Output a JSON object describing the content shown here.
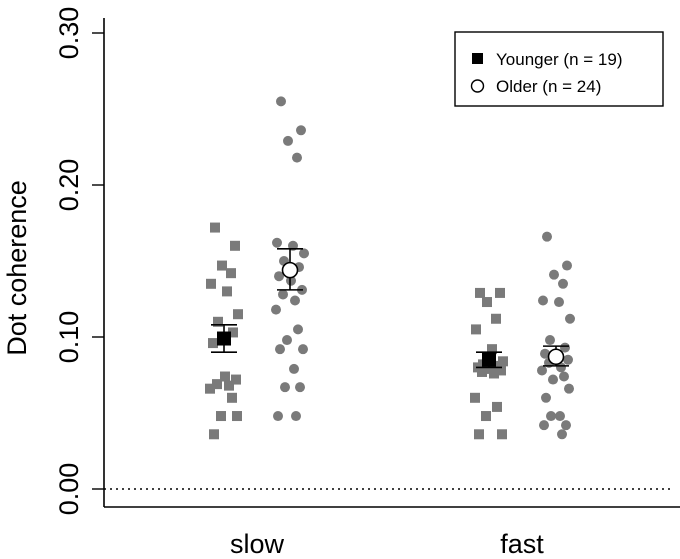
{
  "chart_data": {
    "type": "scatter",
    "title": "",
    "xlabel": "",
    "ylabel": "Dot coherence",
    "ylim": [
      0,
      0.3
    ],
    "yticks": [
      "0.00",
      "0.10",
      "0.20",
      "0.30"
    ],
    "categories": [
      "slow",
      "fast"
    ],
    "reference_line": {
      "y": 0,
      "style": "dotted"
    },
    "legend_position": "top-right",
    "colors": {
      "points": "#7a7a7a",
      "mean": "#000000",
      "axis": "#000000"
    },
    "series": [
      {
        "name": "Younger (n = 19)",
        "marker": "filled-square",
        "groups": [
          {
            "category": "slow",
            "mean": 0.099,
            "error": [
              0.09,
              0.108
            ],
            "values": [
              0.172,
              0.16,
              0.147,
              0.142,
              0.135,
              0.13,
              0.115,
              0.11,
              0.103,
              0.096,
              0.074,
              0.072,
              0.069,
              0.068,
              0.066,
              0.06,
              0.048,
              0.048,
              0.036
            ]
          },
          {
            "category": "fast",
            "mean": 0.085,
            "error": [
              0.08,
              0.09
            ],
            "values": [
              0.129,
              0.129,
              0.123,
              0.112,
              0.105,
              0.092,
              0.084,
              0.082,
              0.081,
              0.08,
              0.079,
              0.078,
              0.077,
              0.076,
              0.06,
              0.054,
              0.048,
              0.036,
              0.036
            ]
          }
        ]
      },
      {
        "name": "Older (n = 24)",
        "marker": "open-circle",
        "groups": [
          {
            "category": "slow",
            "mean": 0.144,
            "error": [
              0.131,
              0.158
            ],
            "values": [
              0.255,
              0.236,
              0.229,
              0.218,
              0.162,
              0.16,
              0.155,
              0.15,
              0.146,
              0.14,
              0.137,
              0.131,
              0.128,
              0.124,
              0.118,
              0.105,
              0.098,
              0.092,
              0.092,
              0.079,
              0.067,
              0.067,
              0.048,
              0.048
            ]
          },
          {
            "category": "fast",
            "mean": 0.087,
            "error": [
              0.081,
              0.094
            ],
            "values": [
              0.166,
              0.147,
              0.141,
              0.135,
              0.124,
              0.123,
              0.112,
              0.098,
              0.093,
              0.089,
              0.086,
              0.085,
              0.083,
              0.08,
              0.078,
              0.074,
              0.072,
              0.066,
              0.06,
              0.048,
              0.048,
              0.042,
              0.042,
              0.036
            ]
          }
        ]
      }
    ]
  }
}
